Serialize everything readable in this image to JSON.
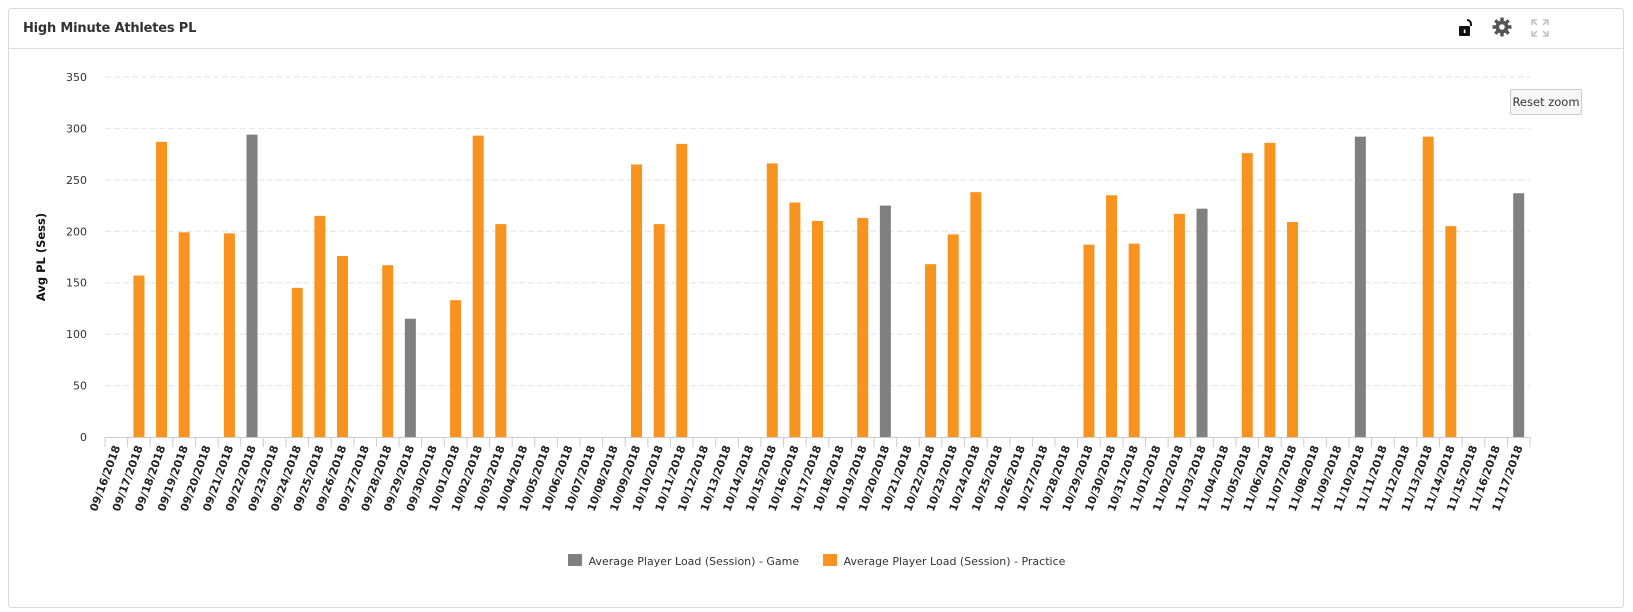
{
  "panel": {
    "title": "High Minute Athletes PL",
    "icons": [
      "lock-open-icon",
      "gear-icon",
      "expand-icon"
    ],
    "reset_zoom_label": "Reset zoom"
  },
  "colors": {
    "game": "#808080",
    "practice": "#f7931e",
    "grid": "#e2e2e2",
    "axis_text": "#333333"
  },
  "chart_data": {
    "type": "bar",
    "title": "",
    "xlabel": "",
    "ylabel": "Avg PL (Sess)",
    "ylim": [
      0,
      350
    ],
    "yticks": [
      0,
      50,
      100,
      150,
      200,
      250,
      300,
      350
    ],
    "grid": true,
    "legend_position": "bottom-center",
    "categories": [
      "09/16/2018",
      "09/17/2018",
      "09/18/2018",
      "09/19/2018",
      "09/20/2018",
      "09/21/2018",
      "09/22/2018",
      "09/23/2018",
      "09/24/2018",
      "09/25/2018",
      "09/26/2018",
      "09/27/2018",
      "09/28/2018",
      "09/29/2018",
      "09/30/2018",
      "10/01/2018",
      "10/02/2018",
      "10/03/2018",
      "10/04/2018",
      "10/05/2018",
      "10/06/2018",
      "10/07/2018",
      "10/08/2018",
      "10/09/2018",
      "10/10/2018",
      "10/11/2018",
      "10/12/2018",
      "10/13/2018",
      "10/14/2018",
      "10/15/2018",
      "10/16/2018",
      "10/17/2018",
      "10/18/2018",
      "10/19/2018",
      "10/20/2018",
      "10/21/2018",
      "10/22/2018",
      "10/23/2018",
      "10/24/2018",
      "10/25/2018",
      "10/26/2018",
      "10/27/2018",
      "10/28/2018",
      "10/29/2018",
      "10/30/2018",
      "10/31/2018",
      "11/01/2018",
      "11/02/2018",
      "11/03/2018",
      "11/04/2018",
      "11/05/2018",
      "11/06/2018",
      "11/07/2018",
      "11/08/2018",
      "11/09/2018",
      "11/10/2018",
      "11/11/2018",
      "11/12/2018",
      "11/13/2018",
      "11/14/2018",
      "11/15/2018",
      "11/16/2018",
      "11/17/2018"
    ],
    "series": [
      {
        "name": "Average Player Load (Session) - Game",
        "color": "#808080",
        "values": [
          null,
          null,
          null,
          null,
          null,
          null,
          294,
          null,
          null,
          null,
          null,
          null,
          null,
          115,
          null,
          null,
          null,
          null,
          null,
          null,
          null,
          null,
          null,
          null,
          null,
          null,
          null,
          null,
          null,
          null,
          null,
          null,
          null,
          null,
          225,
          null,
          null,
          null,
          null,
          null,
          null,
          null,
          null,
          null,
          null,
          null,
          null,
          null,
          222,
          null,
          null,
          null,
          null,
          null,
          null,
          292,
          null,
          null,
          null,
          null,
          null,
          null,
          237
        ]
      },
      {
        "name": "Average Player Load (Session) - Practice",
        "color": "#f7931e",
        "values": [
          null,
          157,
          287,
          199,
          null,
          198,
          null,
          null,
          145,
          215,
          176,
          null,
          167,
          null,
          null,
          133,
          293,
          207,
          null,
          null,
          null,
          null,
          null,
          265,
          207,
          285,
          null,
          null,
          null,
          266,
          228,
          210,
          null,
          213,
          null,
          null,
          168,
          197,
          238,
          null,
          null,
          null,
          null,
          187,
          235,
          188,
          null,
          217,
          null,
          null,
          276,
          286,
          209,
          null,
          null,
          null,
          null,
          null,
          292,
          205,
          null,
          null,
          null
        ]
      }
    ]
  }
}
